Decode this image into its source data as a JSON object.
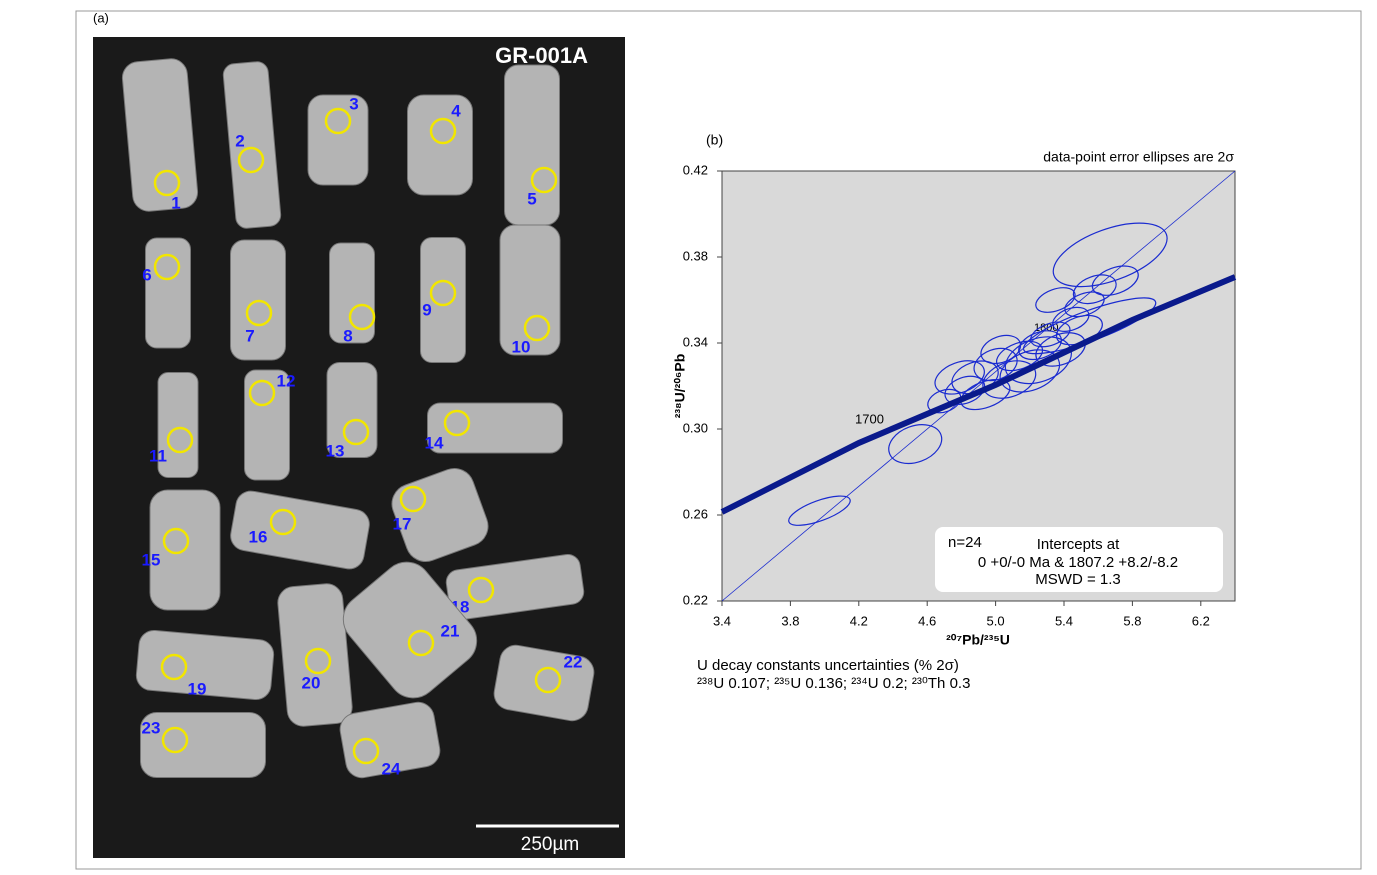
{
  "panel_a": {
    "label": "(a)",
    "sample": "GR-001A",
    "scale_bar": "250µm",
    "spots": [
      "1",
      "2",
      "3",
      "4",
      "5",
      "6",
      "7",
      "8",
      "9",
      "10",
      "11",
      "12",
      "13",
      "14",
      "15",
      "16",
      "17",
      "18",
      "19",
      "20",
      "21",
      "22",
      "23",
      "24"
    ]
  },
  "chart_data": {
    "type": "concordia",
    "panel_label": "(b)",
    "title": "data-point error ellipses are 2σ",
    "x_label": "²⁰⁷Pb/²³⁵U",
    "y_label": "²³⁸U/²⁰⁶Pb",
    "xlim": [
      3.4,
      6.4
    ],
    "ylim": [
      0.22,
      0.42
    ],
    "xticks": [
      3.4,
      3.8,
      4.2,
      4.6,
      {
        "value": 5,
        "label": "5.0"
      },
      5.4,
      5.8,
      6.2
    ],
    "yticks": [
      0.22,
      0.26,
      {
        "value": 0.3,
        "label": "0.30"
      },
      0.34,
      0.38,
      0.42
    ],
    "background": "#d9d9d9",
    "concordia": {
      "color": "#0a1a8c",
      "x": [
        3.4,
        4.2,
        5.0,
        5.8,
        6.4
      ],
      "y": [
        0.2614,
        0.2935,
        0.3205,
        0.3507,
        0.3707
      ]
    },
    "discordia": {
      "color": "#1a2bd0",
      "x": [
        3.4,
        6.4
      ],
      "y": [
        0.22,
        0.42
      ]
    },
    "age_labels": [
      "1700",
      "1800"
    ],
    "ellipses": {
      "color": "#1a2bd0",
      "x": [
        3.97,
        4.53,
        4.82,
        4.88,
        4.94,
        5.0,
        5.03,
        5.08,
        5.14,
        5.2,
        5.26,
        5.32,
        5.38,
        5.44,
        5.49,
        5.52,
        5.58,
        5.67,
        5.55,
        4.79,
        4.7,
        5.35,
        5.7,
        5.25
      ],
      "y": [
        0.262,
        0.293,
        0.318,
        0.324,
        0.316,
        0.33,
        0.337,
        0.323,
        0.334,
        0.327,
        0.339,
        0.344,
        0.337,
        0.351,
        0.346,
        0.358,
        0.365,
        0.381,
        0.348,
        0.324,
        0.313,
        0.36,
        0.369,
        0.332
      ],
      "x_err": [
        0.19,
        0.16,
        0.12,
        0.14,
        0.15,
        0.13,
        0.12,
        0.16,
        0.14,
        0.18,
        0.13,
        0.12,
        0.15,
        0.11,
        0.14,
        0.12,
        0.13,
        0.35,
        0.41,
        0.15,
        0.1,
        0.12,
        0.14,
        0.2
      ],
      "y_err": [
        0.0047,
        0.0084,
        0.006,
        0.007,
        0.006,
        0.007,
        0.006,
        0.008,
        0.006,
        0.009,
        0.006,
        0.005,
        0.007,
        0.005,
        0.006,
        0.005,
        0.006,
        0.012,
        0.007,
        0.007,
        0.005,
        0.005,
        0.006,
        0.01
      ]
    },
    "legend": [
      "n=24",
      "Intercepts at",
      "0 +0/-0 Ma & 1807.2 +8.2/-8.2",
      "MSWD = 1.3"
    ],
    "footnote": [
      "U decay constants uncertainties (% 2σ)",
      "²³⁸U 0.107; ²³⁵U 0.136; ²³⁴U 0.2; ²³⁰Th 0.3"
    ]
  }
}
